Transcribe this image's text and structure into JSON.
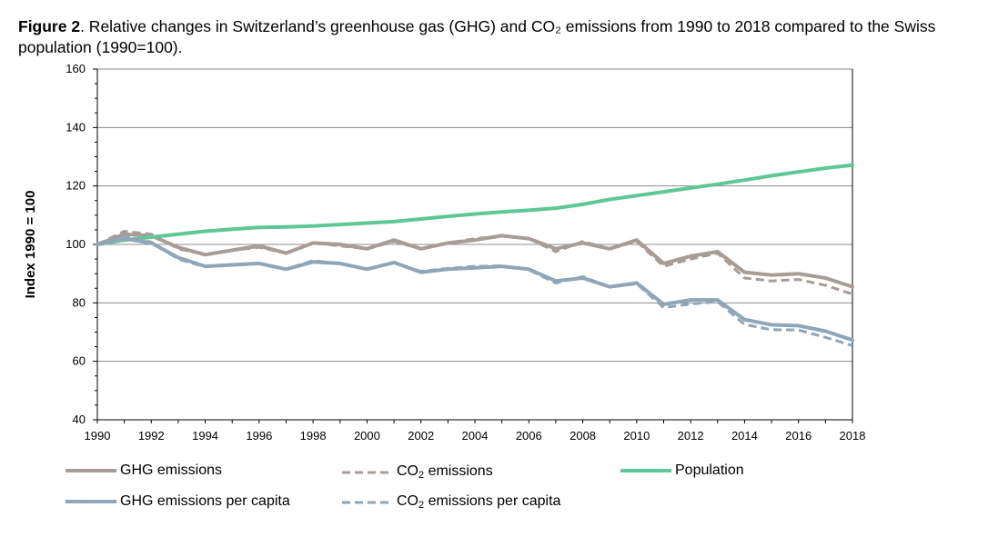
{
  "caption": {
    "label": "Figure 2",
    "text": ". Relative changes in Switzerland’s greenhouse gas (GHG) and CO₂ emissions from 1990 to 2018 compared to the Swiss population (1990=100)."
  },
  "colors": {
    "ghg": "#a89c97",
    "co2": "#a89c97",
    "population": "#5ec894",
    "ghg_pc": "#8ea6b8",
    "co2_pc": "#8ea6b8",
    "grid": "#8c8c8c",
    "axis": "#000000"
  },
  "chart_data": {
    "type": "line",
    "title": "",
    "xlabel": "",
    "ylabel": "Index 1990 = 100",
    "xlim": [
      1990,
      2018
    ],
    "ylim": [
      40,
      160
    ],
    "yticks": [
      40,
      60,
      80,
      100,
      120,
      140,
      160
    ],
    "xticks": [
      1990,
      1992,
      1994,
      1996,
      1998,
      2000,
      2002,
      2004,
      2006,
      2008,
      2010,
      2012,
      2014,
      2016,
      2018
    ],
    "grid": "horizontal",
    "legend_position": "bottom",
    "x": [
      1990,
      1991,
      1992,
      1993,
      1994,
      1995,
      1996,
      1997,
      1998,
      1999,
      2000,
      2001,
      2002,
      2003,
      2004,
      2005,
      2006,
      2007,
      2008,
      2009,
      2010,
      2011,
      2012,
      2013,
      2014,
      2015,
      2016,
      2017,
      2018
    ],
    "series": [
      {
        "key": "ghg",
        "name": "GHG emissions",
        "dash": "solid",
        "values": [
          100,
          103.5,
          103,
          99,
          96.5,
          98,
          99.5,
          97,
          100.5,
          100,
          98.5,
          101.5,
          98.5,
          100.5,
          101.5,
          103,
          102,
          98.5,
          100.5,
          98.5,
          101.5,
          93.5,
          96,
          97.5,
          90.5,
          89.5,
          90,
          88.5,
          85.5
        ]
      },
      {
        "key": "co2",
        "name": "CO2 emissions",
        "dash": "dashed",
        "values": [
          100,
          104.5,
          103.5,
          98.5,
          96.5,
          98,
          99,
          97,
          100.5,
          99.5,
          98.5,
          101,
          98.5,
          100.5,
          102,
          103,
          102,
          97.5,
          101,
          98.5,
          101,
          92.5,
          95,
          97,
          88.5,
          87.5,
          88,
          86,
          83
        ]
      },
      {
        "key": "population",
        "name": "Population",
        "dash": "solid",
        "values": [
          100,
          101.5,
          102.5,
          103.5,
          104.5,
          105.2,
          105.8,
          106,
          106.3,
          106.8,
          107.3,
          107.8,
          108.7,
          109.6,
          110.4,
          111.1,
          111.7,
          112.4,
          113.7,
          115.4,
          116.7,
          118,
          119.3,
          120.6,
          122,
          123.5,
          124.8,
          126.1,
          127.1
        ]
      },
      {
        "key": "ghg_pc",
        "name": "GHG emissions per capita",
        "dash": "solid",
        "values": [
          100,
          102,
          100.5,
          95.5,
          92.5,
          93,
          93.5,
          91.5,
          94,
          93.5,
          91.5,
          93.8,
          90.5,
          91.5,
          92,
          92.5,
          91.5,
          87.5,
          88.5,
          85.5,
          86.8,
          79.5,
          81,
          81,
          74.3,
          72.5,
          72.2,
          70.3,
          67.3
        ]
      },
      {
        "key": "co2_pc",
        "name": "CO2 emissions per capita",
        "dash": "dashed",
        "values": [
          100,
          102.7,
          100.8,
          95,
          92.3,
          93,
          93.5,
          91.5,
          94.5,
          93.3,
          91.7,
          93.7,
          90.8,
          91.8,
          92.5,
          92.7,
          91.3,
          86.8,
          89,
          85.4,
          86.5,
          78.4,
          79.6,
          80.4,
          72.6,
          70.8,
          70.7,
          68.2,
          65.4
        ]
      }
    ]
  },
  "legend": [
    {
      "key": "ghg",
      "label": "GHG emissions"
    },
    {
      "key": "co2",
      "label_main": "CO",
      "label_sub": "2",
      "label_rest": " emissions"
    },
    {
      "key": "population",
      "label": "Population"
    },
    {
      "key": "ghg_pc",
      "label": "GHG emissions per capita"
    },
    {
      "key": "co2_pc",
      "label_main": "CO",
      "label_sub": "2",
      "label_rest": " emissions per capita"
    }
  ]
}
